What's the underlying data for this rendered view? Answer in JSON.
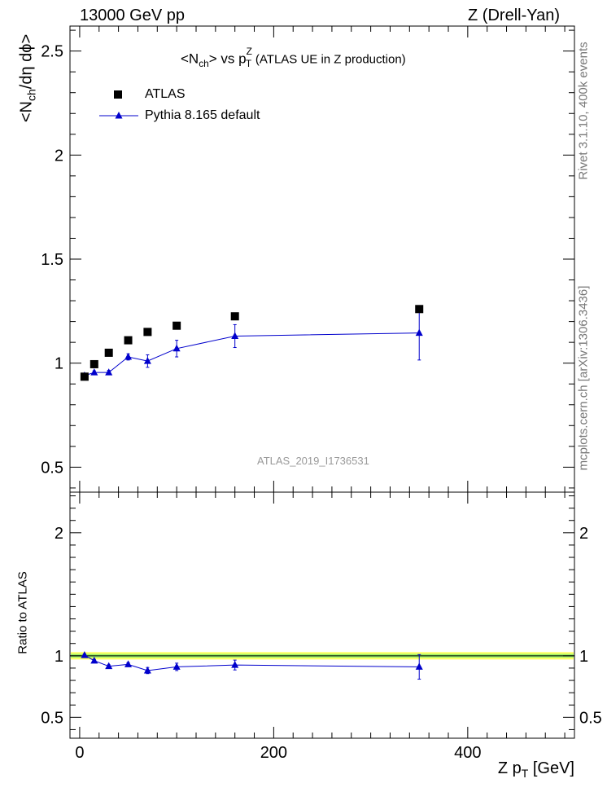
{
  "header": {
    "left": "13000 GeV pp",
    "right": "Z (Drell-Yan)"
  },
  "title": {
    "main": "<N",
    "main_sub": "ch",
    "vs": "> vs p",
    "vs_sup": "Z",
    "vs_sub": "T",
    "rest": "(ATLAS UE in Z production)"
  },
  "side_labels": {
    "rivet": "Rivet 3.1.10,  400k events",
    "mcplots": "mcplots.cern.ch [arXiv:1306.3436]"
  },
  "watermark": "ATLAS_2019_I1736531",
  "axes": {
    "ylabel_main": "<N",
    "ylabel_main_sub": "ch",
    "ylabel_main_rest": "/dη dϕ>",
    "ylabel_ratio": "Ratio to ATLAS",
    "xlabel": "Z p",
    "xlabel_sub": "T",
    "xlabel_rest": "[GeV]"
  },
  "legend": {
    "atlas": "ATLAS",
    "pythia": "Pythia 8.165 default"
  },
  "colors": {
    "data": "#000000",
    "mc": "#0000cc",
    "band_inner": "#ffff66",
    "band_outer": "#99ee66"
  },
  "chart_data": [
    {
      "type": "scatter",
      "panel": "main",
      "xlim": [
        -10,
        510
      ],
      "ylim": [
        0.38,
        2.62
      ],
      "yticks": [
        0.5,
        1,
        1.5,
        2,
        2.5
      ],
      "xticks": [
        0,
        200,
        400
      ],
      "series": [
        {
          "name": "ATLAS",
          "marker": "square",
          "x": [
            5,
            15,
            30,
            50,
            70,
            100,
            160,
            350
          ],
          "y": [
            0.935,
            0.995,
            1.05,
            1.11,
            1.15,
            1.18,
            1.225,
            1.26
          ],
          "err": [
            0,
            0,
            0,
            0,
            0,
            0,
            0,
            0
          ]
        },
        {
          "name": "Pythia 8.165 default",
          "marker": "triangle",
          "x": [
            5,
            15,
            30,
            50,
            70,
            100,
            160,
            350
          ],
          "y": [
            0.94,
            0.955,
            0.955,
            1.03,
            1.01,
            1.07,
            1.13,
            1.145
          ],
          "err": [
            0.008,
            0.008,
            0.01,
            0.015,
            0.03,
            0.04,
            0.055,
            0.13
          ]
        }
      ]
    },
    {
      "type": "line",
      "panel": "ratio",
      "xlim": [
        -10,
        510
      ],
      "ylim": [
        0.33,
        2.33
      ],
      "yticks": [
        0.5,
        1,
        2
      ],
      "xticks": [
        0,
        200,
        400
      ],
      "band": {
        "center": 1.0,
        "inner": 0.015,
        "outer": 0.03
      },
      "series": [
        {
          "name": "Pythia 8.165 default",
          "x": [
            5,
            15,
            30,
            50,
            70,
            100,
            160,
            350
          ],
          "y": [
            1.005,
            0.96,
            0.915,
            0.93,
            0.88,
            0.91,
            0.925,
            0.91
          ],
          "err": [
            0.01,
            0.01,
            0.012,
            0.014,
            0.025,
            0.03,
            0.04,
            0.1
          ]
        }
      ]
    }
  ]
}
